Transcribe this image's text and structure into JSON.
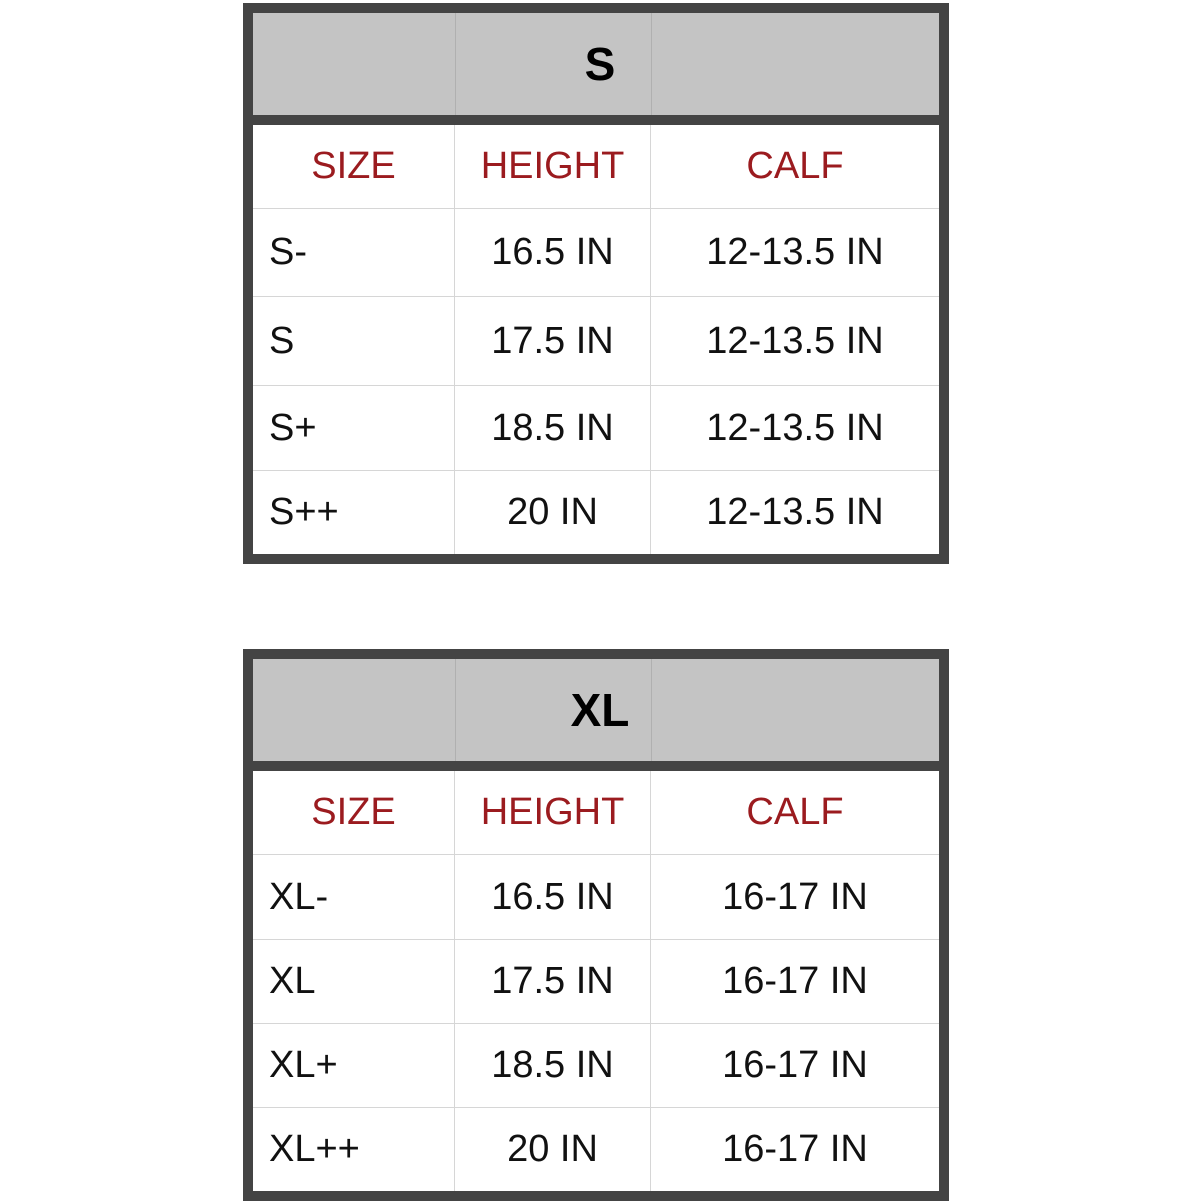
{
  "header_color": "#9b1b1f",
  "tables": [
    {
      "title": "S",
      "columns": [
        "SIZE",
        "HEIGHT",
        "CALF"
      ],
      "rows": [
        [
          "S-",
          "16.5 IN",
          "12-13.5 IN"
        ],
        [
          "S",
          "17.5 IN",
          "12-13.5 IN"
        ],
        [
          "S+",
          "18.5 IN",
          "12-13.5 IN"
        ],
        [
          "S++",
          "20 IN",
          "12-13.5 IN"
        ]
      ]
    },
    {
      "title": "XL",
      "columns": [
        "SIZE",
        "HEIGHT",
        "CALF"
      ],
      "rows": [
        [
          "XL-",
          "16.5 IN",
          "16-17 IN"
        ],
        [
          "XL",
          "17.5 IN",
          "16-17 IN"
        ],
        [
          "XL+",
          "18.5 IN",
          "16-17 IN"
        ],
        [
          "XL++",
          "20 IN",
          "16-17 IN"
        ]
      ]
    }
  ]
}
